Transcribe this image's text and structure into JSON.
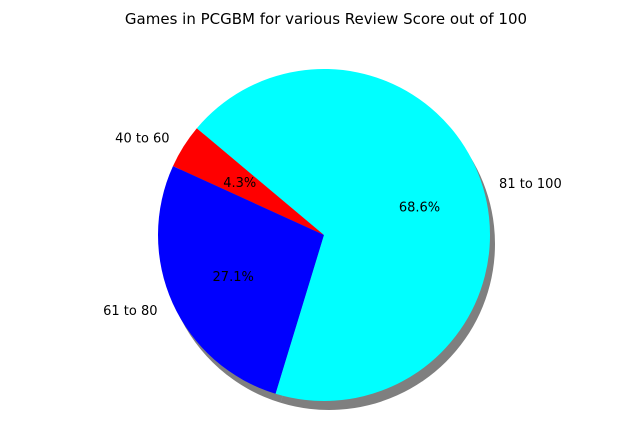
{
  "chart_data": {
    "type": "pie",
    "title": "Games in PCGBM for various Review Score out of 100",
    "categories": [
      "40 to 60",
      "61 to 80",
      "81 to 100"
    ],
    "values": [
      4.3,
      27.1,
      68.6
    ],
    "percent_labels": [
      "4.3%",
      "27.1%",
      "68.6%"
    ],
    "colors": [
      "#ff0000",
      "#0000ff",
      "#00ffff"
    ],
    "shadow": true,
    "legend": "none"
  }
}
